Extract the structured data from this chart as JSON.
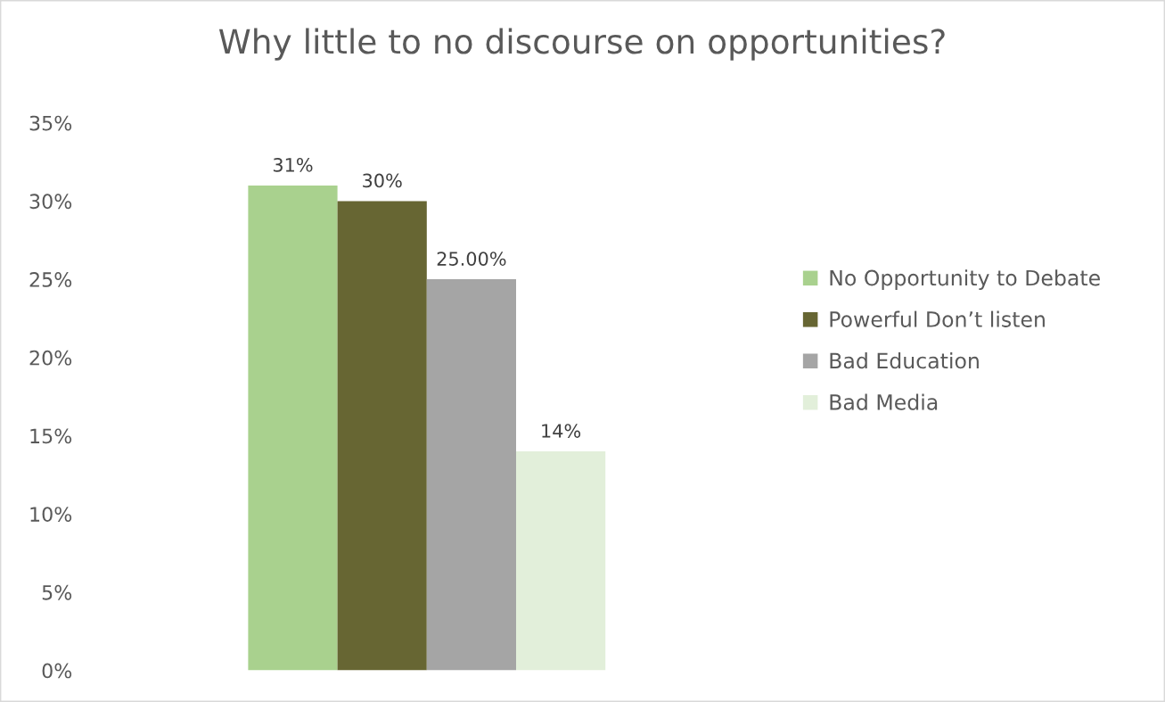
{
  "chart_data": {
    "type": "bar",
    "title": "Why little to no discourse on opportunities?",
    "categories": [
      null
    ],
    "series": [
      {
        "name": "No Opportunity to Debate",
        "color": "#a9d18e",
        "values": [
          31
        ],
        "value_labels": [
          "31%"
        ]
      },
      {
        "name": "Powerful Don’t listen",
        "color": "#676633",
        "values": [
          30
        ],
        "value_labels": [
          "30%"
        ]
      },
      {
        "name": "Bad Education",
        "color": "#a5a5a5",
        "values": [
          25
        ],
        "value_labels": [
          "25.00%"
        ]
      },
      {
        "name": "Bad Media",
        "color": "#e2efda",
        "values": [
          14
        ],
        "value_labels": [
          "14%"
        ]
      }
    ],
    "ylim": [
      0,
      35
    ],
    "yticks": [
      {
        "value": 0,
        "label": "0%"
      },
      {
        "value": 5,
        "label": "5%"
      },
      {
        "value": 10,
        "label": "10%"
      },
      {
        "value": 15,
        "label": "15%"
      },
      {
        "value": 20,
        "label": "20%"
      },
      {
        "value": 25,
        "label": "25%"
      },
      {
        "value": 30,
        "label": "30%"
      },
      {
        "value": 35,
        "label": "35%"
      }
    ],
    "grid": false,
    "legend": "right"
  }
}
